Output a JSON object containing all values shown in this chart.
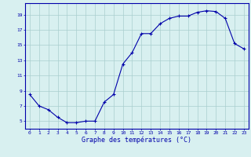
{
  "x": [
    0,
    1,
    2,
    3,
    4,
    5,
    6,
    7,
    8,
    9,
    10,
    11,
    12,
    13,
    14,
    15,
    16,
    17,
    18,
    19,
    20,
    21,
    22,
    23
  ],
  "y": [
    8.5,
    7.0,
    6.5,
    5.5,
    4.8,
    4.8,
    5.0,
    5.0,
    7.5,
    8.5,
    12.5,
    14.0,
    16.5,
    16.5,
    17.8,
    18.5,
    18.8,
    18.8,
    19.3,
    19.5,
    19.4,
    18.5,
    15.2,
    14.5
  ],
  "xlabel": "Graphe des températures (°C)",
  "xticks": [
    0,
    1,
    2,
    3,
    4,
    5,
    6,
    7,
    8,
    9,
    10,
    11,
    12,
    13,
    14,
    15,
    16,
    17,
    18,
    19,
    20,
    21,
    22,
    23
  ],
  "yticks": [
    5,
    7,
    9,
    11,
    13,
    15,
    17,
    19
  ],
  "ylim": [
    4.0,
    20.5
  ],
  "xlim": [
    -0.5,
    23.5
  ],
  "line_color": "#0000aa",
  "marker_color": "#0000aa",
  "bg_color": "#d8f0f0",
  "grid_color": "#aacece",
  "axis_label_color": "#0000aa",
  "tick_color": "#0000aa",
  "spine_color": "#0000aa",
  "tick_fontsize": 4.5,
  "xlabel_fontsize": 6.0,
  "linewidth": 0.8,
  "markersize": 3.5,
  "markeredgewidth": 0.8
}
